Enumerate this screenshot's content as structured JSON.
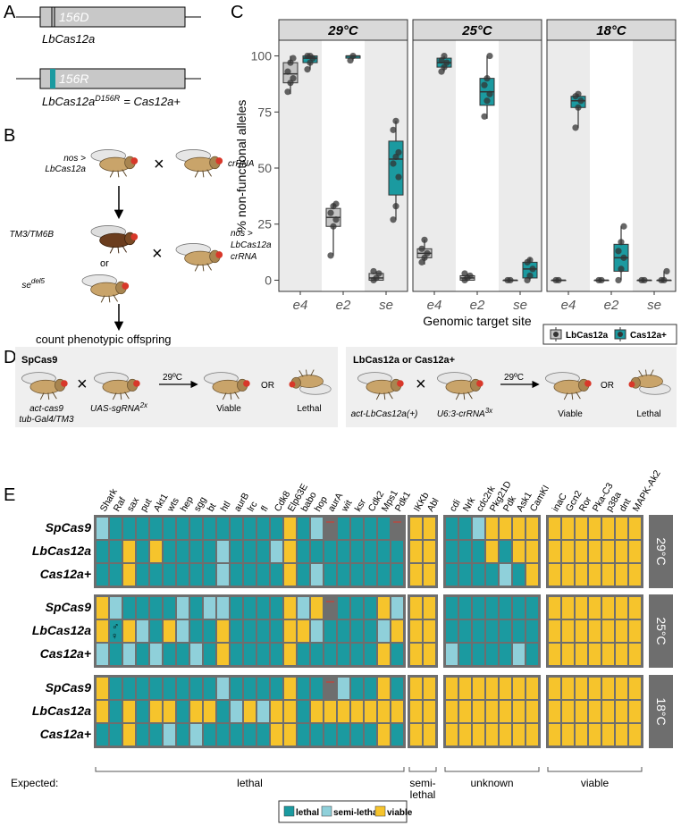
{
  "panel_labels": [
    "A",
    "B",
    "C",
    "D",
    "E"
  ],
  "panel_a": {
    "construct_1": {
      "mark": "156D",
      "label": "LbCas12a"
    },
    "construct_2": {
      "mark": "156R",
      "name": "LbCas12a",
      "superscript": "D156R",
      "suffix": "= Cas12a+"
    }
  },
  "panel_b": {
    "cross1_left": [
      "nos >",
      "LbCas12a"
    ],
    "cross1_right": "crRNA",
    "balancer": "TM3/TM6B",
    "or": "or",
    "deletion": {
      "name": "se",
      "superscript": "del5"
    },
    "cross2_right": [
      "nos >",
      "LbCas12a",
      "crRNA"
    ],
    "result": "count phenotypic offspring"
  },
  "chart_data": {
    "type": "box",
    "y_label": "% non-functional alleles",
    "x_label": "Genomic target site",
    "facets": [
      "29°C",
      "25°C",
      "18°C"
    ],
    "categories": [
      "e4",
      "e2",
      "se"
    ],
    "ylim": [
      -5,
      107
    ],
    "yticks": [
      0,
      25,
      50,
      75,
      100
    ],
    "series": [
      {
        "name": "LbCas12a",
        "color": "#c4c4c4",
        "boxes": [
          [
            {
              "low": 83,
              "q1": 88,
              "median": 92,
              "q3": 97,
              "high": 100,
              "points": [
                84,
                88,
                90,
                93,
                97,
                99
              ]
            },
            {
              "low": 11,
              "q1": 24,
              "median": 28,
              "q3": 32,
              "high": 34,
              "points": [
                11,
                24,
                27,
                30,
                33,
                34
              ]
            },
            {
              "low": 0,
              "q1": 0,
              "median": 1,
              "q3": 3,
              "high": 4,
              "points": [
                0,
                1,
                3,
                4
              ]
            }
          ],
          [
            {
              "low": 7,
              "q1": 10,
              "median": 12,
              "q3": 14,
              "high": 18,
              "points": [
                8,
                10,
                12,
                14,
                18
              ]
            },
            {
              "low": 0,
              "q1": 0,
              "median": 1,
              "q3": 2,
              "high": 3,
              "points": [
                0,
                1,
                2,
                3
              ]
            },
            {
              "low": 0,
              "q1": 0,
              "median": 0,
              "q3": 0,
              "high": 0,
              "points": [
                0,
                0
              ]
            }
          ],
          [
            {
              "low": 0,
              "q1": 0,
              "median": 0,
              "q3": 0,
              "high": 0,
              "points": [
                0,
                0
              ]
            },
            {
              "low": 0,
              "q1": 0,
              "median": 0,
              "q3": 0,
              "high": 0,
              "points": [
                0,
                0
              ]
            },
            {
              "low": 0,
              "q1": 0,
              "median": 0,
              "q3": 0,
              "high": 0,
              "points": [
                0,
                0
              ]
            }
          ]
        ]
      },
      {
        "name": "Cas12a+",
        "color": "#1b9aa0",
        "boxes": [
          [
            {
              "low": 94,
              "q1": 97,
              "median": 99,
              "q3": 100,
              "high": 100,
              "points": [
                94,
                97,
                99,
                100,
                100
              ]
            },
            {
              "low": 98,
              "q1": 99,
              "median": 100,
              "q3": 100,
              "high": 100,
              "points": [
                98,
                100
              ]
            },
            {
              "low": 27,
              "q1": 38,
              "median": 54,
              "q3": 62,
              "high": 71,
              "points": [
                27,
                33,
                46,
                52,
                55,
                57,
                67,
                71
              ]
            }
          ],
          [
            {
              "low": 93,
              "q1": 95,
              "median": 97,
              "q3": 99,
              "high": 100,
              "points": [
                93,
                95,
                97,
                98,
                100
              ]
            },
            {
              "low": 72,
              "q1": 78,
              "median": 84,
              "q3": 90,
              "high": 100,
              "points": [
                73,
                80,
                83,
                87,
                90,
                100
              ]
            },
            {
              "low": 0,
              "q1": 1,
              "median": 5,
              "q3": 8,
              "high": 10,
              "points": [
                0,
                2,
                5,
                8,
                9
              ]
            }
          ],
          [
            {
              "low": 68,
              "q1": 77,
              "median": 80,
              "q3": 82,
              "high": 83,
              "points": [
                68,
                77,
                80,
                82,
                83
              ]
            },
            {
              "low": 0,
              "q1": 4,
              "median": 10,
              "q3": 16,
              "high": 24,
              "points": [
                0,
                5,
                10,
                13,
                17,
                24
              ]
            },
            {
              "low": 0,
              "q1": 0,
              "median": 0,
              "q3": 0,
              "high": 4,
              "points": [
                0,
                0,
                4
              ]
            }
          ]
        ]
      }
    ]
  },
  "panel_d": {
    "left": {
      "title": "SpCas9",
      "parent1": [
        "act-cas9",
        "tub-Gal4/TM3"
      ],
      "parent2": {
        "name": "UAS-sgRNA",
        "superscript": "2x"
      },
      "temperature": "29ºC",
      "outcome1": "Viable",
      "or": "OR",
      "outcome2": "Lethal"
    },
    "right": {
      "title": "LbCas12a or Cas12a+",
      "parent1": "act-LbCas12a(+)",
      "parent2": {
        "name": "U6:3-crRNA",
        "superscript": "3x"
      },
      "temperature": "29ºC",
      "outcome1": "Viable",
      "or": "OR",
      "outcome2": "Lethal"
    }
  },
  "panel_e": {
    "expected_label": "Expected:",
    "groups": [
      {
        "label_lines": [
          "lethal"
        ],
        "genes": [
          "Shark",
          "Raf",
          "sax",
          "put",
          "Akt1",
          "wts",
          "hep",
          "sgg",
          "bt",
          "htl",
          "aurB",
          "lrc",
          "fl",
          "Cdk8",
          "Elp63E",
          "babo",
          "hop",
          "aurA",
          "wit",
          "ksr",
          "Cdk2",
          "Mps1",
          "Pdk1"
        ]
      },
      {
        "label_lines": [
          "semi-",
          "lethal"
        ],
        "genes": [
          "IKKb",
          "Abl"
        ]
      },
      {
        "label_lines": [
          "unknown"
        ],
        "genes": [
          "cdi",
          "Nrk",
          "cdc2rk",
          "Pkg21D",
          "Pdk",
          "Ask1",
          "CamKI"
        ]
      },
      {
        "label_lines": [
          "viable"
        ],
        "genes": [
          "inaC",
          "Gcn2",
          "Ror",
          "Pka-C3",
          "p38a",
          "dnt",
          "MAPK-Ak2"
        ]
      }
    ],
    "legend": [
      {
        "label": "lethal",
        "color": "#1b9aa0"
      },
      {
        "label": "semi-lethal",
        "color": "#8fd0da"
      },
      {
        "label": "viable",
        "color": "#f6c42c"
      }
    ],
    "annotation": [
      "♂",
      "♀"
    ],
    "blocks": [
      {
        "temperature": "29°C",
        "rows": [
          {
            "name": "SpCas9",
            "cells": [
              [
                "semi-lethal",
                "lethal",
                "lethal",
                "lethal",
                "lethal",
                "lethal",
                "lethal",
                "lethal",
                "lethal",
                "lethal",
                "lethal",
                "lethal",
                "lethal",
                "lethal",
                "viable",
                "lethal",
                "semi-lethal",
                null,
                "lethal",
                "lethal",
                "lethal",
                "lethal",
                null
              ],
              [
                "viable",
                "viable"
              ],
              [
                "lethal",
                "lethal",
                "semi-lethal",
                "viable",
                "viable",
                "viable",
                "viable"
              ],
              [
                "viable",
                "viable",
                "viable",
                "viable",
                "viable",
                "viable",
                "viable"
              ]
            ]
          },
          {
            "name": "LbCas12a",
            "cells": [
              [
                "lethal",
                "lethal",
                "viable",
                "lethal",
                "viable",
                "lethal",
                "lethal",
                "lethal",
                "lethal",
                "semi-lethal",
                "lethal",
                "lethal",
                "lethal",
                "semi-lethal",
                "viable",
                "lethal",
                "lethal",
                "lethal",
                "lethal",
                "lethal",
                "lethal",
                "lethal",
                "lethal"
              ],
              [
                "viable",
                "viable"
              ],
              [
                "lethal",
                "lethal",
                "lethal",
                "viable",
                "lethal",
                "viable",
                "viable"
              ],
              [
                "viable",
                "viable",
                "viable",
                "viable",
                "viable",
                "viable",
                "viable"
              ]
            ]
          },
          {
            "name": "Cas12a+",
            "cells": [
              [
                "lethal",
                "lethal",
                "viable",
                "lethal",
                "lethal",
                "lethal",
                "lethal",
                "lethal",
                "lethal",
                "semi-lethal",
                "lethal",
                "lethal",
                "lethal",
                "lethal",
                "viable",
                "lethal",
                "semi-lethal",
                "lethal",
                "lethal",
                "lethal",
                "lethal",
                "lethal",
                "lethal"
              ],
              [
                "viable",
                "viable"
              ],
              [
                "lethal",
                "lethal",
                "lethal",
                "lethal",
                "semi-lethal",
                "lethal",
                "viable"
              ],
              [
                "viable",
                "viable",
                "viable",
                "viable",
                "viable",
                "viable",
                "viable"
              ]
            ]
          }
        ]
      },
      {
        "temperature": "25°C",
        "rows": [
          {
            "name": "SpCas9",
            "cells": [
              [
                "viable",
                "semi-lethal",
                "lethal",
                "lethal",
                "lethal",
                "lethal",
                "semi-lethal",
                "lethal",
                "semi-lethal",
                "semi-lethal",
                "lethal",
                "lethal",
                "lethal",
                "lethal",
                "viable",
                "semi-lethal",
                "viable",
                null,
                "lethal",
                "lethal",
                "lethal",
                "viable",
                "semi-lethal"
              ],
              [
                "viable",
                "viable"
              ],
              [
                "lethal",
                "lethal",
                "lethal",
                "lethal",
                "lethal",
                "lethal",
                "lethal"
              ],
              [
                "viable",
                "viable",
                "viable",
                "viable",
                "viable",
                "viable",
                "viable"
              ]
            ]
          },
          {
            "name": "LbCas12a",
            "cells": [
              [
                "viable",
                "lethal",
                "viable",
                "semi-lethal",
                "lethal",
                "viable",
                "semi-lethal",
                "lethal",
                "lethal",
                "viable",
                "lethal",
                "lethal",
                "lethal",
                "lethal",
                "viable",
                "viable",
                "semi-lethal",
                "lethal",
                "lethal",
                "lethal",
                "lethal",
                "semi-lethal",
                "viable"
              ],
              [
                "viable",
                "viable"
              ],
              [
                "lethal",
                "lethal",
                "lethal",
                "lethal",
                "lethal",
                "lethal",
                "lethal"
              ],
              [
                "viable",
                "viable",
                "viable",
                "viable",
                "viable",
                "viable",
                "viable"
              ]
            ]
          },
          {
            "name": "Cas12a+",
            "cells": [
              [
                "semi-lethal",
                "lethal",
                "semi-lethal",
                "lethal",
                "semi-lethal",
                "lethal",
                "lethal",
                "semi-lethal",
                "lethal",
                "viable",
                "lethal",
                "lethal",
                "lethal",
                "lethal",
                "viable",
                "lethal",
                "lethal",
                "lethal",
                "lethal",
                "lethal",
                "lethal",
                "viable",
                "lethal"
              ],
              [
                "viable",
                "viable"
              ],
              [
                "semi-lethal",
                "lethal",
                "lethal",
                "lethal",
                "lethal",
                "semi-lethal",
                "lethal"
              ],
              [
                "viable",
                "viable",
                "viable",
                "viable",
                "viable",
                "viable",
                "viable"
              ]
            ]
          }
        ]
      },
      {
        "temperature": "18°C",
        "rows": [
          {
            "name": "SpCas9",
            "cells": [
              [
                "viable",
                "lethal",
                "lethal",
                "lethal",
                "lethal",
                "lethal",
                "lethal",
                "lethal",
                "lethal",
                "semi-lethal",
                "lethal",
                "lethal",
                "lethal",
                "lethal",
                "viable",
                "lethal",
                "lethal",
                null,
                "semi-lethal",
                "lethal",
                "lethal",
                "viable",
                "lethal"
              ],
              [
                "viable",
                "viable"
              ],
              [
                "viable",
                "viable",
                "viable",
                "viable",
                "viable",
                "viable",
                "viable"
              ],
              [
                "viable",
                "viable",
                "viable",
                "viable",
                "viable",
                "viable",
                "viable"
              ]
            ]
          },
          {
            "name": "LbCas12a",
            "cells": [
              [
                "viable",
                "lethal",
                "viable",
                "lethal",
                "viable",
                "viable",
                "lethal",
                "viable",
                "viable",
                "lethal",
                "semi-lethal",
                "viable",
                "semi-lethal",
                "viable",
                "viable",
                "lethal",
                "viable",
                "viable",
                "viable",
                "viable",
                "viable",
                "viable",
                "viable"
              ],
              [
                "viable",
                "viable"
              ],
              [
                "viable",
                "viable",
                "viable",
                "viable",
                "viable",
                "viable",
                "viable"
              ],
              [
                "viable",
                "viable",
                "viable",
                "viable",
                "viable",
                "viable",
                "viable"
              ]
            ]
          },
          {
            "name": "Cas12a+",
            "cells": [
              [
                "lethal",
                "lethal",
                "viable",
                "lethal",
                "lethal",
                "semi-lethal",
                "lethal",
                "semi-lethal",
                "lethal",
                "lethal",
                "lethal",
                "lethal",
                "lethal",
                "viable",
                "viable",
                "lethal",
                "lethal",
                "lethal",
                "lethal",
                "lethal",
                "lethal",
                "viable",
                "lethal"
              ],
              [
                "viable",
                "viable"
              ],
              [
                "viable",
                "viable",
                "viable",
                "viable",
                "viable",
                "viable",
                "viable"
              ],
              [
                "viable",
                "viable",
                "viable",
                "viable",
                "viable",
                "viable",
                "viable"
              ]
            ]
          }
        ]
      }
    ]
  }
}
